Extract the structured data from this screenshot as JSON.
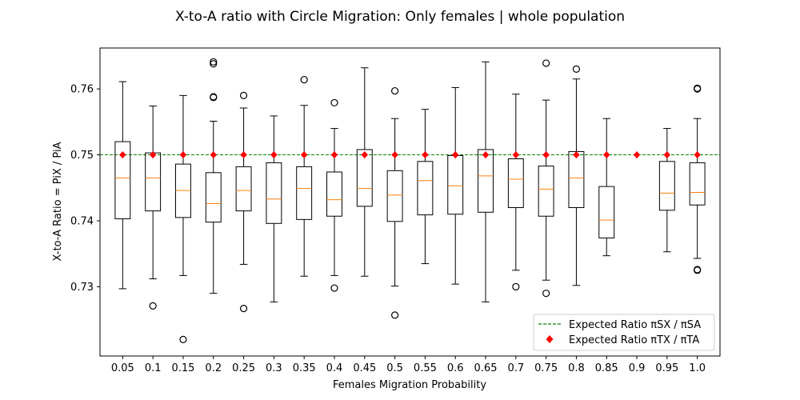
{
  "chart_data": {
    "type": "box",
    "title": "X-to-A ratio with Circle Migration: Only females | whole population",
    "xlabel": "Females Migration Probability",
    "ylabel": "X-to-A Ratio = PiX / PiA",
    "categories": [
      "0.05",
      "0.1",
      "0.15",
      "0.2",
      "0.25",
      "0.3",
      "0.35",
      "0.4",
      "0.45",
      "0.5",
      "0.55",
      "0.6",
      "0.65",
      "0.7",
      "0.75",
      "0.8",
      "0.85",
      "0.9",
      "0.95",
      "1.0"
    ],
    "ylim": [
      0.7195,
      0.7662
    ],
    "yticks": [
      0.73,
      0.74,
      0.75,
      0.76
    ],
    "ytick_labels": [
      "0.73",
      "0.74",
      "0.75",
      "0.76"
    ],
    "boxes": [
      {
        "q1": 0.7403,
        "median": 0.7465,
        "q3": 0.752,
        "whisker_low": 0.7297,
        "whisker_high": 0.7611,
        "outliers": []
      },
      {
        "q1": 0.7415,
        "median": 0.7465,
        "q3": 0.7503,
        "whisker_low": 0.7312,
        "whisker_high": 0.7574,
        "outliers": [
          0.7271
        ]
      },
      {
        "q1": 0.7405,
        "median": 0.7446,
        "q3": 0.7486,
        "whisker_low": 0.7317,
        "whisker_high": 0.759,
        "outliers": [
          0.722
        ]
      },
      {
        "q1": 0.7398,
        "median": 0.7426,
        "q3": 0.7473,
        "whisker_low": 0.729,
        "whisker_high": 0.7551,
        "outliers": [
          0.7587,
          0.7588,
          0.7638,
          0.7641
        ]
      },
      {
        "q1": 0.7415,
        "median": 0.7446,
        "q3": 0.7482,
        "whisker_low": 0.7334,
        "whisker_high": 0.7571,
        "outliers": [
          0.7267,
          0.759
        ]
      },
      {
        "q1": 0.7396,
        "median": 0.7433,
        "q3": 0.7488,
        "whisker_low": 0.7277,
        "whisker_high": 0.7559,
        "outliers": []
      },
      {
        "q1": 0.7402,
        "median": 0.7449,
        "q3": 0.7482,
        "whisker_low": 0.7316,
        "whisker_high": 0.7575,
        "outliers": [
          0.7614
        ]
      },
      {
        "q1": 0.7407,
        "median": 0.7432,
        "q3": 0.7474,
        "whisker_low": 0.7317,
        "whisker_high": 0.754,
        "outliers": [
          0.7298,
          0.7579
        ]
      },
      {
        "q1": 0.7422,
        "median": 0.7449,
        "q3": 0.7508,
        "whisker_low": 0.7316,
        "whisker_high": 0.7632,
        "outliers": []
      },
      {
        "q1": 0.7399,
        "median": 0.7439,
        "q3": 0.7476,
        "whisker_low": 0.7301,
        "whisker_high": 0.7555,
        "outliers": [
          0.7257,
          0.7597
        ]
      },
      {
        "q1": 0.7409,
        "median": 0.7461,
        "q3": 0.749,
        "whisker_low": 0.7335,
        "whisker_high": 0.7569,
        "outliers": []
      },
      {
        "q1": 0.741,
        "median": 0.7453,
        "q3": 0.7499,
        "whisker_low": 0.7304,
        "whisker_high": 0.7602,
        "outliers": []
      },
      {
        "q1": 0.7413,
        "median": 0.7468,
        "q3": 0.7508,
        "whisker_low": 0.7277,
        "whisker_high": 0.7641,
        "outliers": []
      },
      {
        "q1": 0.742,
        "median": 0.7463,
        "q3": 0.7494,
        "whisker_low": 0.7325,
        "whisker_high": 0.7592,
        "outliers": [
          0.73
        ]
      },
      {
        "q1": 0.7407,
        "median": 0.7448,
        "q3": 0.7483,
        "whisker_low": 0.731,
        "whisker_high": 0.7583,
        "outliers": [
          0.729,
          0.7639
        ]
      },
      {
        "q1": 0.742,
        "median": 0.7465,
        "q3": 0.7505,
        "whisker_low": 0.7302,
        "whisker_high": 0.7615,
        "outliers": [
          0.763
        ]
      },
      {
        "q1": 0.7374,
        "median": 0.7401,
        "q3": 0.7452,
        "whisker_low": 0.7347,
        "whisker_high": 0.7555,
        "outliers": []
      },
      null,
      {
        "q1": 0.7416,
        "median": 0.7442,
        "q3": 0.749,
        "whisker_low": 0.7353,
        "whisker_high": 0.754,
        "outliers": []
      },
      {
        "q1": 0.7424,
        "median": 0.7443,
        "q3": 0.7488,
        "whisker_low": 0.7343,
        "whisker_high": 0.7555,
        "outliers": [
          0.7325,
          0.7326,
          0.76,
          0.7601
        ]
      }
    ],
    "expected_line": {
      "value": 0.75,
      "label": "Expected Ratio πSX / πSA",
      "color": "#008000",
      "style": "dashed"
    },
    "expected_points": {
      "value": 0.75,
      "label": "Expected Ratio πTX / πTA",
      "color": "#ff0000",
      "marker": "diamond"
    },
    "colors": {
      "box": "#000000",
      "median": "#ff7f0e",
      "outlier": "#000000"
    },
    "legend_position": "lower-right",
    "grid": false
  }
}
